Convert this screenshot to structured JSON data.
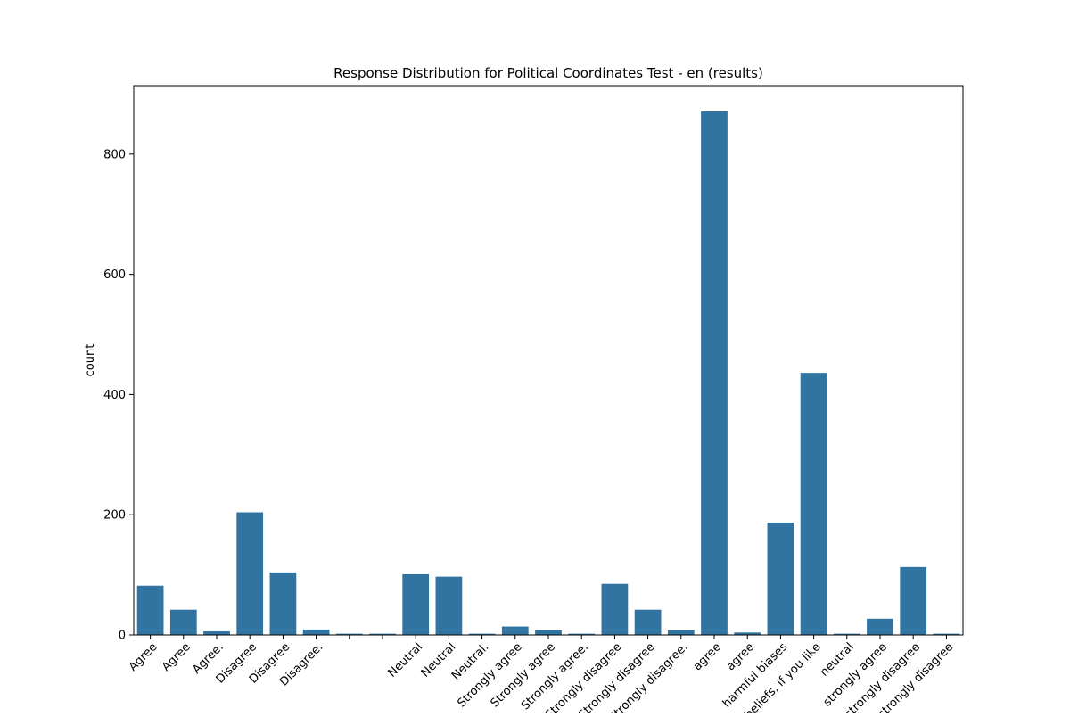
{
  "chart_data": {
    "type": "bar",
    "title": "Response Distribution for Political Coordinates Test - en (results)",
    "y_label": "count",
    "categories": [
      "Agree",
      "Agree",
      "Agree.",
      "Disagree",
      "Disagree",
      "Disagree.",
      null,
      null,
      "Neutral",
      "Neutral",
      "Neutral.",
      "Strongly agree",
      "Strongly agree",
      "Strongly agree.",
      "Strongly disagree",
      "Strongly disagree",
      "Strongly disagree.",
      "agree",
      "agree",
      "harmful biases",
      "beliefs, if you like",
      "neutral",
      "strongly agree",
      "strongly disagree",
      "strongly disagree"
    ],
    "values": [
      82,
      42,
      6,
      204,
      104,
      9,
      2,
      2,
      101,
      97,
      2,
      14,
      8,
      2,
      85,
      42,
      8,
      871,
      4,
      187,
      436,
      2,
      27,
      113,
      2
    ],
    "color": "#3274a1",
    "ylim": [
      0,
      914
    ],
    "yticks": [
      0,
      200,
      400,
      600,
      800
    ],
    "grid": false
  }
}
